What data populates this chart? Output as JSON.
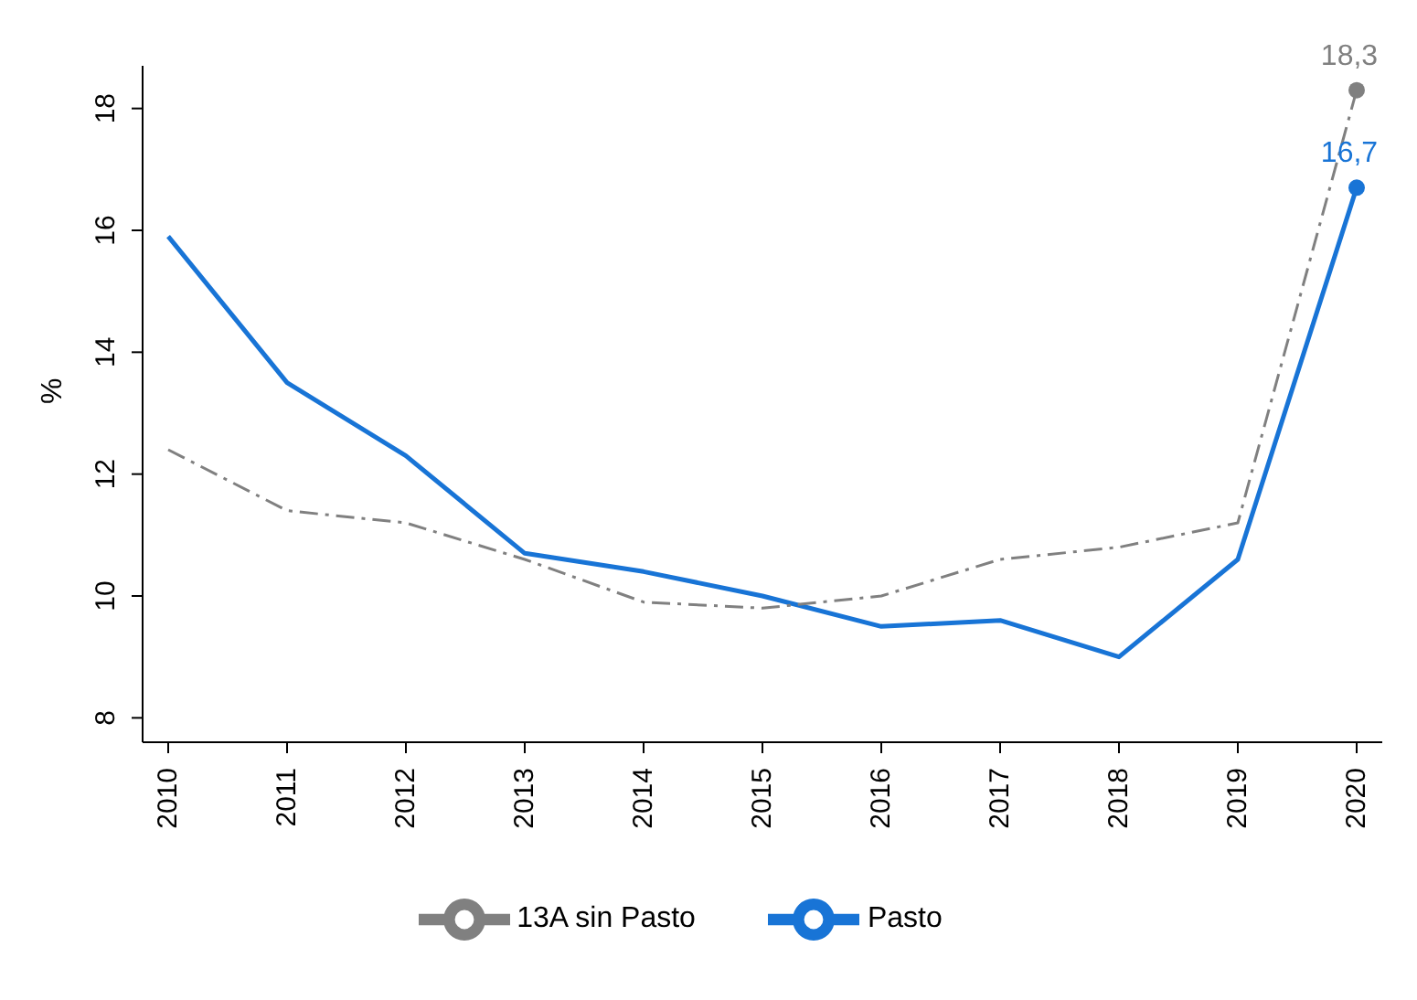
{
  "chart_data": {
    "type": "line",
    "ylabel": "%",
    "categories": [
      "2010",
      "2011",
      "2012",
      "2013",
      "2014",
      "2015",
      "2016",
      "2017",
      "2018",
      "2019",
      "2020"
    ],
    "series": [
      {
        "name": "Pasto",
        "color": "#1874d6",
        "line_style": "solid",
        "values": [
          15.9,
          13.5,
          12.3,
          10.7,
          10.4,
          10.0,
          9.5,
          9.6,
          9.0,
          10.6,
          16.7
        ],
        "value_labels": [
          null,
          null,
          null,
          null,
          null,
          null,
          null,
          null,
          null,
          null,
          "16,7"
        ]
      },
      {
        "name": "13A sin Pasto",
        "color": "#808080",
        "line_style": "dashed",
        "values": [
          12.4,
          11.4,
          11.2,
          10.6,
          9.9,
          9.8,
          10.0,
          10.6,
          10.8,
          11.2,
          18.3
        ],
        "value_labels": [
          null,
          null,
          null,
          null,
          null,
          null,
          null,
          null,
          null,
          null,
          "18,3"
        ]
      }
    ],
    "ylim": [
      7.6,
      18.7
    ],
    "yticks": [
      8,
      10,
      12,
      14,
      16,
      18
    ],
    "grid": false,
    "legend": "bottom",
    "marker": "none"
  }
}
